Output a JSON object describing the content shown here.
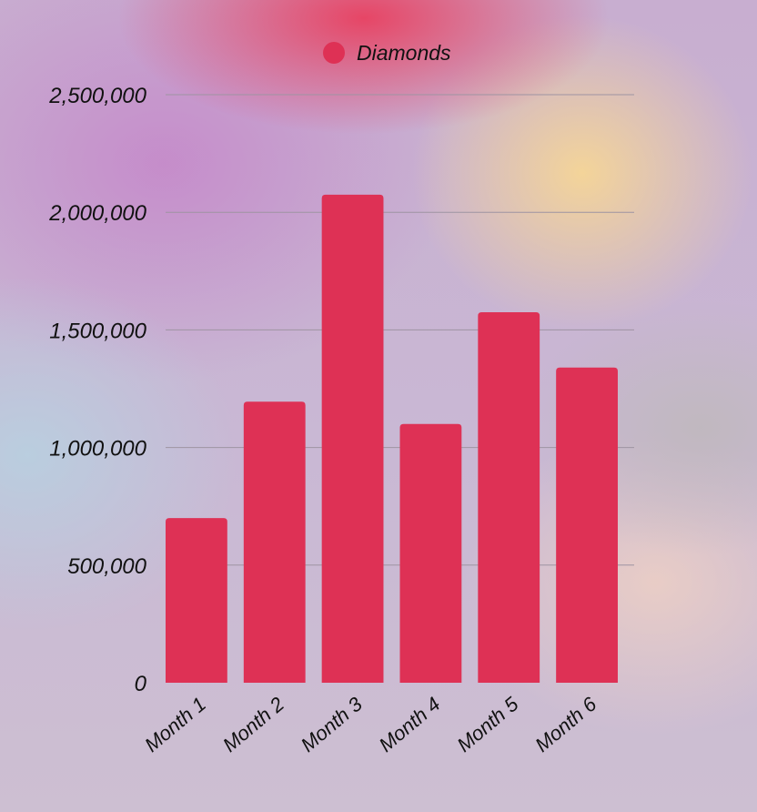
{
  "colors": {
    "bar": "#de3155",
    "grid": "#9e94a2"
  },
  "chart_data": {
    "type": "bar",
    "categories": [
      "Month 1",
      "Month 2",
      "Month 3",
      "Month 4",
      "Month 5",
      "Month 6"
    ],
    "series": [
      {
        "name": "Diamonds",
        "values": [
          700000,
          1195000,
          2075000,
          1100000,
          1575000,
          1340000
        ]
      }
    ],
    "title": "",
    "xlabel": "",
    "ylabel": "",
    "ylim": [
      0,
      2500000
    ],
    "yticks": [
      "0",
      "500,000",
      "1,000,000",
      "1,500,000",
      "2,000,000",
      "2,500,000"
    ],
    "grid": true,
    "legend": "top-center"
  }
}
